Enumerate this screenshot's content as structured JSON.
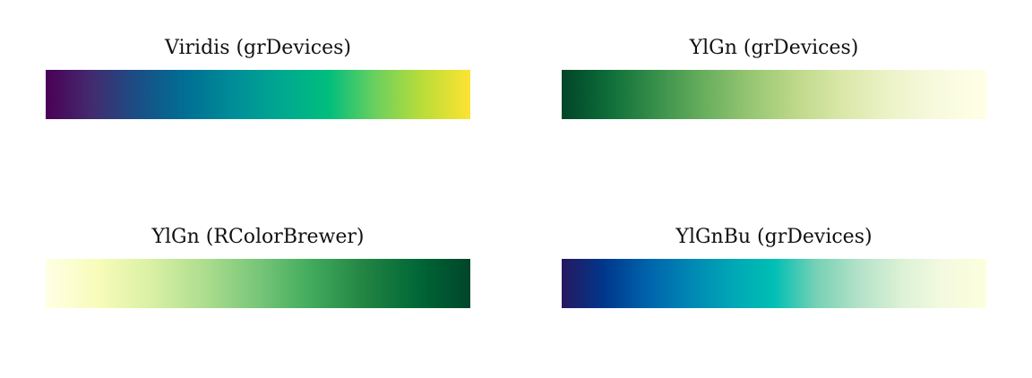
{
  "chart_data": [
    {
      "type": "heatmap",
      "title": "Viridis (grDevices)",
      "colors": [
        "#4B0055",
        "#422C70",
        "#185086",
        "#007094",
        "#008E98",
        "#00A890",
        "#00BE7D",
        "#6CD05E",
        "#BBDD38",
        "#FDE333"
      ]
    },
    {
      "type": "heatmap",
      "title": "YlGn (grDevices)",
      "colors": [
        "#004529",
        "#0E6D39",
        "#37904A",
        "#67AE5D",
        "#97C672",
        "#BFD98A",
        "#DBE8AA",
        "#EDF3C9",
        "#F8FADF",
        "#FFFFE5"
      ]
    },
    {
      "type": "heatmap",
      "title": "YlGn (RColorBrewer)",
      "colors": [
        "#FFFFE5",
        "#F7FCB9",
        "#D9F0A3",
        "#ADDD8E",
        "#78C679",
        "#41AB5D",
        "#238443",
        "#006837",
        "#004529"
      ]
    },
    {
      "type": "heatmap",
      "title": "YlGnBu (grDevices)",
      "colors": [
        "#26185F",
        "#00378C",
        "#0062AA",
        "#0086B4",
        "#00A6B5",
        "#00BFB4",
        "#77D1B5",
        "#B3E2C8",
        "#DCF1D5",
        "#F4FADF",
        "#FCFFDD"
      ]
    }
  ]
}
